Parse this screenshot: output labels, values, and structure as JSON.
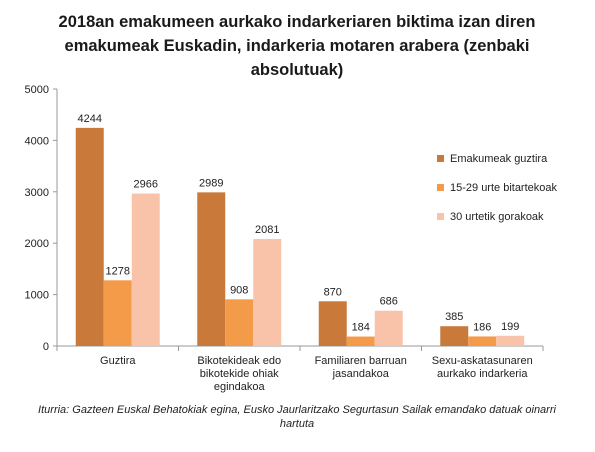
{
  "chart_data": {
    "type": "bar",
    "title_lines": [
      "2018an emakumeen aurkako indarkeriaren biktima izan diren",
      "emakumeak Euskadin, indarkeria motaren arabera (zenbaki",
      "absolutuak)"
    ],
    "categories": [
      [
        "Guztira"
      ],
      [
        "Bikotekideak edo",
        "bikotekide ohiak",
        "egindakoa"
      ],
      [
        "Familiaren barruan",
        "jasandakoa"
      ],
      [
        "Sexu-askatasunaren",
        "aurkako indarkeria"
      ]
    ],
    "series": [
      {
        "name": "Emakumeak guztira",
        "color": "#c97a3a",
        "values": [
          4244,
          2989,
          870,
          385
        ]
      },
      {
        "name": "15-29 urte bitartekoak",
        "color": "#f49b4a",
        "values": [
          1278,
          908,
          184,
          186
        ]
      },
      {
        "name": "30 urtetik gorakoak",
        "color": "#f9c3a9",
        "values": [
          2966,
          2081,
          686,
          199
        ]
      }
    ],
    "ylim": [
      0,
      5000
    ],
    "yticks": [
      "0",
      "1000",
      "2000",
      "3000",
      "4000",
      "5000"
    ],
    "legend_position": "right",
    "grid": false
  },
  "source_lines": [
    "Iturria: Gazteen Euskal Behatokiak egina, Eusko Jaurlaritzako Segurtasun Sailak emandako datuak oinarri",
    "hartuta"
  ]
}
